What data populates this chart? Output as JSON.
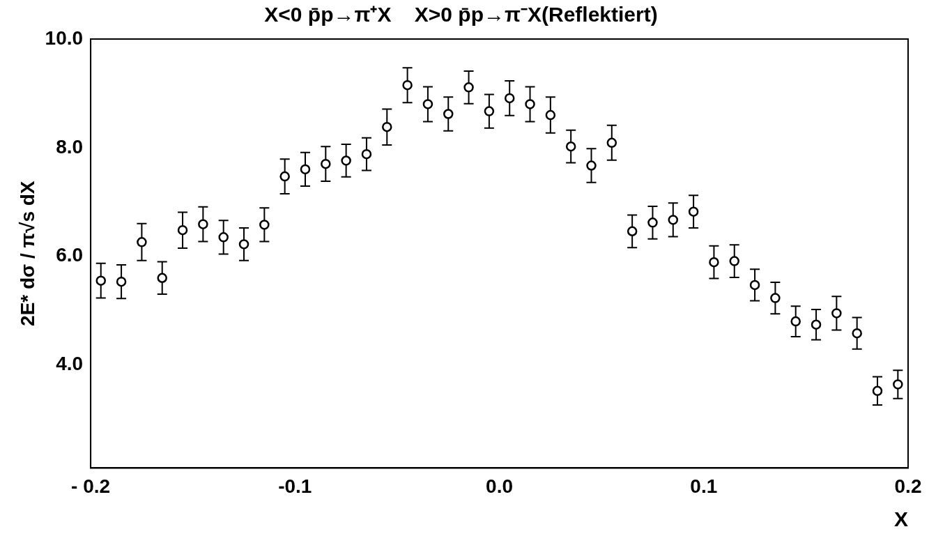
{
  "chart_data": {
    "type": "scatter",
    "title": "X<0 p̄p→π⁺X    X>0 p̄p→π⁻X(Reflektiert)",
    "xlabel": "X",
    "ylabel": "2E* dσ / π√s dX",
    "x": [
      -0.195,
      -0.185,
      -0.175,
      -0.165,
      -0.155,
      -0.145,
      -0.135,
      -0.125,
      -0.115,
      -0.105,
      -0.095,
      -0.085,
      -0.075,
      -0.065,
      -0.055,
      -0.045,
      -0.035,
      -0.025,
      -0.015,
      -0.005,
      0.005,
      0.015,
      0.025,
      0.035,
      0.045,
      0.055,
      0.065,
      0.075,
      0.085,
      0.095,
      0.105,
      0.115,
      0.125,
      0.135,
      0.145,
      0.155,
      0.165,
      0.175,
      0.185,
      0.195
    ],
    "series": [
      {
        "color": "#000000",
        "values": [
          5.55,
          5.53,
          6.26,
          5.6,
          6.48,
          6.59,
          6.35,
          6.22,
          6.58,
          7.47,
          7.6,
          7.7,
          7.76,
          7.88,
          8.38,
          9.15,
          8.8,
          8.62,
          9.11,
          8.67,
          8.91,
          8.8,
          8.6,
          8.02,
          7.67,
          8.09,
          6.46,
          6.62,
          6.67,
          6.82,
          5.89,
          5.91,
          5.47,
          5.23,
          4.8,
          4.74,
          4.95,
          4.58,
          3.52,
          3.64
        ],
        "errors": [
          0.32,
          0.31,
          0.34,
          0.3,
          0.33,
          0.32,
          0.31,
          0.3,
          0.31,
          0.32,
          0.31,
          0.32,
          0.3,
          0.3,
          0.33,
          0.32,
          0.32,
          0.31,
          0.3,
          0.31,
          0.32,
          0.32,
          0.33,
          0.3,
          0.31,
          0.32,
          0.3,
          0.3,
          0.31,
          0.3,
          0.3,
          0.3,
          0.29,
          0.29,
          0.28,
          0.28,
          0.31,
          0.29,
          0.26,
          0.26
        ]
      }
    ],
    "xlim": [
      -0.2,
      0.2
    ],
    "xticks": [
      {
        "value": -0.2,
        "label": "- 0.2"
      },
      -0.1,
      {
        "value": 0,
        "label": "0.0"
      },
      0.1,
      0.2
    ],
    "ylim": [
      2.1,
      10
    ],
    "yticks": [
      {
        "value": 4,
        "label": "4.0"
      },
      {
        "value": 6,
        "label": "6.0"
      },
      {
        "value": 8,
        "label": "8.0"
      },
      {
        "value": 10,
        "label": "10.0"
      }
    ],
    "grid": false,
    "legend": false,
    "marker": "circle"
  }
}
